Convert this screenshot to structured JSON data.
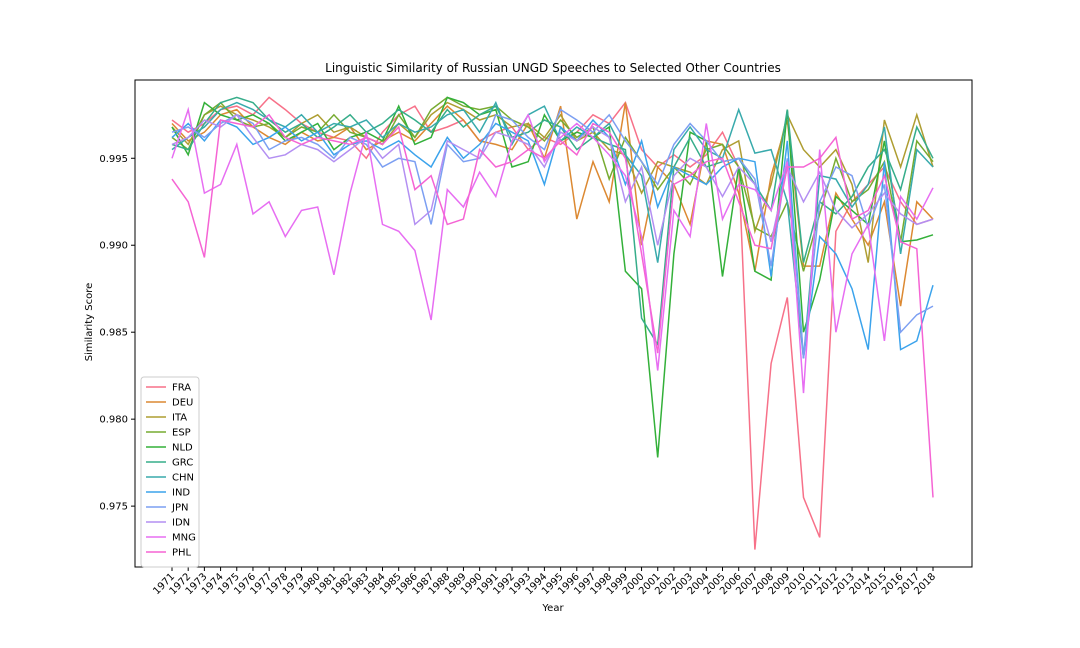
{
  "chart_data": {
    "type": "line",
    "title": "Linguistic Similarity of Russian UNGD Speeches to Selected Other Countries",
    "xlabel": "Year",
    "ylabel": "Similarity Score",
    "ylim": [
      0.9715,
      0.9995
    ],
    "yticks": [
      "0.975",
      "0.980",
      "0.985",
      "0.990",
      "0.995"
    ],
    "grid": false,
    "legend_position": "lower-left",
    "categories": [
      "1971",
      "1972",
      "1973",
      "1974",
      "1975",
      "1976",
      "1977",
      "1978",
      "1979",
      "1980",
      "1981",
      "1982",
      "1983",
      "1984",
      "1985",
      "1986",
      "1987",
      "1988",
      "1989",
      "1990",
      "1991",
      "1992",
      "1993",
      "1994",
      "1995",
      "1996",
      "1997",
      "1998",
      "1999",
      "2000",
      "2001",
      "2002",
      "2003",
      "2004",
      "2005",
      "2006",
      "2007",
      "2008",
      "2009",
      "2010",
      "2011",
      "2012",
      "2013",
      "2014",
      "2015",
      "2016",
      "2017",
      "2018"
    ],
    "series": [
      {
        "name": "FRA",
        "color": "#f77189",
        "values": [
          0.9972,
          0.9965,
          0.997,
          0.9978,
          0.998,
          0.9975,
          0.9985,
          0.9978,
          0.997,
          0.9965,
          0.9962,
          0.996,
          0.995,
          0.9965,
          0.9975,
          0.998,
          0.9965,
          0.9968,
          0.9972,
          0.996,
          0.9965,
          0.9968,
          0.9955,
          0.9962,
          0.9958,
          0.9965,
          0.9975,
          0.997,
          0.9982,
          0.9955,
          0.9945,
          0.9952,
          0.9945,
          0.9952,
          0.9965,
          0.9945,
          0.9725,
          0.9832,
          0.987,
          0.9755,
          0.9732,
          0.9908,
          0.9925,
          0.9935,
          0.9945,
          0.9925,
          0.9912,
          0.9915
        ]
      },
      {
        "name": "DEU",
        "color": "#dc8932",
        "values": [
          0.997,
          0.996,
          0.9965,
          0.9975,
          0.9978,
          0.9968,
          0.9962,
          0.9958,
          0.9965,
          0.996,
          0.9962,
          0.9968,
          0.9955,
          0.996,
          0.9965,
          0.996,
          0.997,
          0.998,
          0.9972,
          0.996,
          0.9958,
          0.9955,
          0.997,
          0.995,
          0.998,
          0.9915,
          0.9948,
          0.9925,
          0.9982,
          0.99,
          0.9945,
          0.9935,
          0.9912,
          0.996,
          0.9958,
          0.993,
          0.9885,
          0.994,
          0.9972,
          0.9888,
          0.9888,
          0.993,
          0.9915,
          0.99,
          0.9925,
          0.9865,
          0.9925,
          0.9915
        ]
      },
      {
        "name": "ITA",
        "color": "#ae9d31",
        "values": [
          0.9968,
          0.9958,
          0.9975,
          0.998,
          0.9975,
          0.9972,
          0.9968,
          0.9962,
          0.997,
          0.9975,
          0.9965,
          0.9968,
          0.9962,
          0.9958,
          0.997,
          0.9962,
          0.9975,
          0.9982,
          0.9978,
          0.9972,
          0.9975,
          0.9968,
          0.997,
          0.9962,
          0.9975,
          0.996,
          0.9965,
          0.9955,
          0.9952,
          0.993,
          0.9948,
          0.9945,
          0.9942,
          0.9935,
          0.9955,
          0.996,
          0.9908,
          0.9935,
          0.9975,
          0.9955,
          0.9945,
          0.9955,
          0.9935,
          0.989,
          0.9972,
          0.9945,
          0.9975,
          0.9945
        ]
      },
      {
        "name": "ESP",
        "color": "#77ab31",
        "values": [
          0.9962,
          0.9955,
          0.9975,
          0.9982,
          0.9972,
          0.9968,
          0.997,
          0.9962,
          0.9968,
          0.9965,
          0.9975,
          0.9965,
          0.9962,
          0.9958,
          0.9975,
          0.9962,
          0.9978,
          0.9985,
          0.998,
          0.9978,
          0.998,
          0.9972,
          0.9968,
          0.996,
          0.9972,
          0.9962,
          0.9968,
          0.9938,
          0.9962,
          0.9948,
          0.9932,
          0.9945,
          0.9935,
          0.9955,
          0.9958,
          0.9945,
          0.991,
          0.9905,
          0.9925,
          0.9885,
          0.9918,
          0.995,
          0.9925,
          0.9932,
          0.9948,
          0.9902,
          0.996,
          0.9948
        ]
      },
      {
        "name": "NLD",
        "color": "#33b039",
        "values": [
          0.9968,
          0.9952,
          0.9982,
          0.9975,
          0.9972,
          0.9975,
          0.997,
          0.996,
          0.9965,
          0.997,
          0.9955,
          0.9962,
          0.9965,
          0.996,
          0.998,
          0.9958,
          0.9962,
          0.9985,
          0.9982,
          0.9975,
          0.9978,
          0.9945,
          0.9948,
          0.9975,
          0.996,
          0.9965,
          0.9962,
          0.9968,
          0.9885,
          0.9875,
          0.9778,
          0.9895,
          0.9965,
          0.996,
          0.9882,
          0.9945,
          0.9885,
          0.988,
          0.9978,
          0.985,
          0.988,
          0.9928,
          0.992,
          0.9912,
          0.996,
          0.9902,
          0.9903,
          0.9906
        ]
      },
      {
        "name": "GRC",
        "color": "#36ad8a",
        "values": [
          0.9958,
          0.9955,
          0.997,
          0.9982,
          0.9985,
          0.9982,
          0.9972,
          0.9965,
          0.997,
          0.9962,
          0.9968,
          0.9975,
          0.9965,
          0.997,
          0.9978,
          0.9972,
          0.9965,
          0.9978,
          0.9968,
          0.9975,
          0.998,
          0.9962,
          0.9965,
          0.9972,
          0.9968,
          0.9955,
          0.9962,
          0.9958,
          0.9955,
          0.9858,
          0.9843,
          0.9945,
          0.9962,
          0.9945,
          0.9948,
          0.995,
          0.9935,
          0.992,
          0.9978,
          0.989,
          0.9925,
          0.9918,
          0.9928,
          0.9945,
          0.9955,
          0.9932,
          0.9968,
          0.995
        ]
      },
      {
        "name": "CHN",
        "color": "#38aaac",
        "values": [
          0.9955,
          0.9962,
          0.9968,
          0.9978,
          0.9982,
          0.9978,
          0.9972,
          0.9968,
          0.9975,
          0.9965,
          0.997,
          0.9968,
          0.9972,
          0.9962,
          0.997,
          0.9965,
          0.9968,
          0.9975,
          0.9978,
          0.9965,
          0.9982,
          0.9958,
          0.9975,
          0.998,
          0.996,
          0.9968,
          0.9962,
          0.997,
          0.9952,
          0.994,
          0.989,
          0.9955,
          0.9968,
          0.9955,
          0.995,
          0.9978,
          0.9953,
          0.9955,
          0.9925,
          0.9835,
          0.994,
          0.9938,
          0.9922,
          0.9935,
          0.9968,
          0.9895,
          0.9955,
          0.9945
        ]
      },
      {
        "name": "IND",
        "color": "#3ba3ec",
        "values": [
          0.9962,
          0.997,
          0.996,
          0.9972,
          0.9968,
          0.9958,
          0.9962,
          0.9968,
          0.996,
          0.9965,
          0.9952,
          0.9958,
          0.996,
          0.9955,
          0.996,
          0.9952,
          0.9945,
          0.9962,
          0.995,
          0.9958,
          0.997,
          0.9965,
          0.996,
          0.9935,
          0.9968,
          0.996,
          0.9972,
          0.9962,
          0.9935,
          0.996,
          0.9922,
          0.9945,
          0.994,
          0.9935,
          0.9945,
          0.995,
          0.9948,
          0.9882,
          0.996,
          0.9835,
          0.9905,
          0.9895,
          0.9875,
          0.984,
          0.9948,
          0.984,
          0.9845,
          0.9877
        ]
      },
      {
        "name": "JPN",
        "color": "#7c9ff2",
        "values": [
          0.9965,
          0.9968,
          0.9962,
          0.997,
          0.9975,
          0.997,
          0.9955,
          0.996,
          0.9962,
          0.9958,
          0.995,
          0.9962,
          0.9958,
          0.9945,
          0.995,
          0.9948,
          0.9912,
          0.9958,
          0.9948,
          0.995,
          0.9975,
          0.9972,
          0.9962,
          0.9955,
          0.9978,
          0.9972,
          0.9965,
          0.9975,
          0.996,
          0.9948,
          0.9935,
          0.9958,
          0.997,
          0.996,
          0.9948,
          0.995,
          0.9938,
          0.9888,
          0.995,
          0.9835,
          0.9925,
          0.9945,
          0.994,
          0.991,
          0.9935,
          0.985,
          0.986,
          0.9865
        ]
      },
      {
        "name": "IDN",
        "color": "#b38ff2",
        "values": [
          0.9958,
          0.9962,
          0.9972,
          0.9968,
          0.9975,
          0.9962,
          0.995,
          0.9952,
          0.9958,
          0.9955,
          0.9948,
          0.9955,
          0.9962,
          0.995,
          0.9958,
          0.9912,
          0.992,
          0.996,
          0.9955,
          0.995,
          0.9965,
          0.9962,
          0.9958,
          0.9945,
          0.9965,
          0.996,
          0.9968,
          0.9962,
          0.9925,
          0.9945,
          0.99,
          0.994,
          0.995,
          0.9945,
          0.9928,
          0.9945,
          0.9935,
          0.9902,
          0.9945,
          0.9925,
          0.9942,
          0.992,
          0.991,
          0.9918,
          0.993,
          0.9918,
          0.9912,
          0.9915
        ]
      },
      {
        "name": "MNG",
        "color": "#e76ef2",
        "values": [
          0.995,
          0.9978,
          0.993,
          0.9935,
          0.9958,
          0.9918,
          0.9925,
          0.9905,
          0.992,
          0.9922,
          0.9883,
          0.993,
          0.9965,
          0.9912,
          0.9908,
          0.9897,
          0.9857,
          0.9932,
          0.9922,
          0.9942,
          0.9928,
          0.996,
          0.9975,
          0.9948,
          0.9962,
          0.997,
          0.9962,
          0.9952,
          0.994,
          0.9905,
          0.9828,
          0.992,
          0.9905,
          0.997,
          0.9915,
          0.9935,
          0.9932,
          0.992,
          0.9948,
          0.9815,
          0.9955,
          0.985,
          0.9895,
          0.9912,
          0.9845,
          0.9928,
          0.9915,
          0.9933
        ]
      },
      {
        "name": "PHL",
        "color": "#f564d4",
        "values": [
          0.9938,
          0.9925,
          0.9893,
          0.9972,
          0.997,
          0.9968,
          0.9975,
          0.9962,
          0.9958,
          0.9962,
          0.996,
          0.9958,
          0.9962,
          0.9958,
          0.9968,
          0.9932,
          0.994,
          0.9912,
          0.9915,
          0.9955,
          0.9945,
          0.9948,
          0.9955,
          0.995,
          0.996,
          0.9952,
          0.997,
          0.9965,
          0.995,
          0.9895,
          0.9838,
          0.9935,
          0.994,
          0.9948,
          0.995,
          0.9925,
          0.99,
          0.9898,
          0.9945,
          0.9945,
          0.995,
          0.9962,
          0.9915,
          0.992,
          0.994,
          0.9902,
          0.9898,
          0.9755
        ]
      }
    ]
  }
}
